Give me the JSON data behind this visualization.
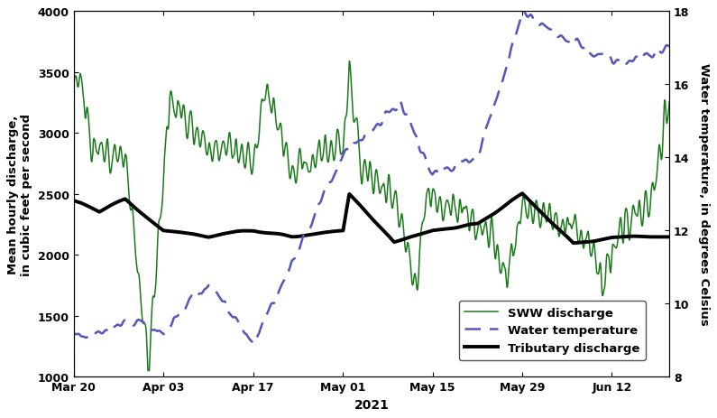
{
  "xlabel": "2021",
  "ylabel_left": "Mean hourly discharge,\nin cubic feet per second",
  "ylabel_right": "Water temperature, in degrees Celsius",
  "ylim_left": [
    1000,
    4000
  ],
  "ylim_right": [
    8,
    18
  ],
  "yticks_left": [
    1000,
    1500,
    2000,
    2500,
    3000,
    3500,
    4000
  ],
  "yticks_right": [
    8,
    10,
    12,
    14,
    16,
    18
  ],
  "xtick_labels": [
    "Mar 20",
    "Apr 03",
    "Apr 17",
    "May 01",
    "May 15",
    "May 29",
    "Jun 12"
  ],
  "sww_color": "#1a7a1a",
  "temp_color": "#5555bb",
  "trib_color": "#000000",
  "legend_labels": [
    "SWW discharge",
    "Water temperature",
    "Tributary discharge"
  ],
  "background_color": "#ffffff"
}
